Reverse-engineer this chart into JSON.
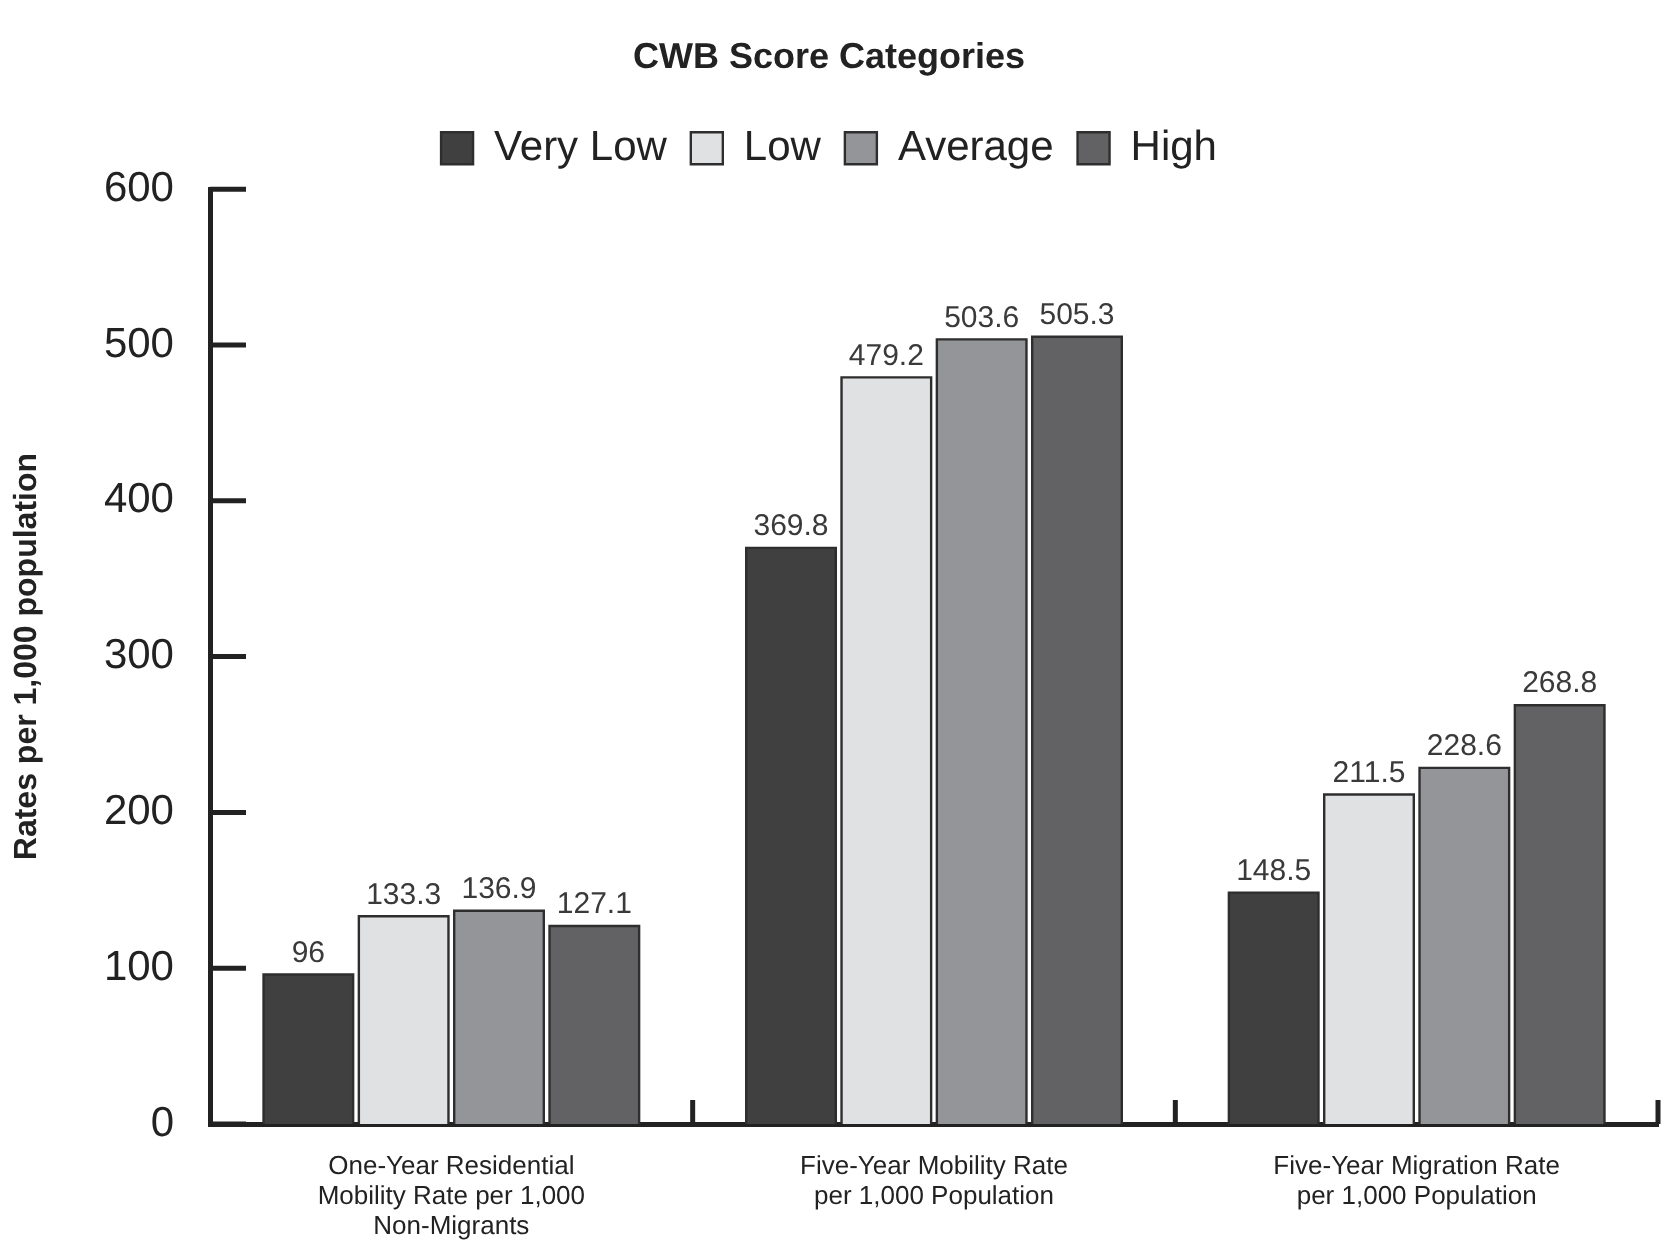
{
  "chart_data": {
    "type": "bar",
    "title": "CWB Score Categories",
    "ylabel": "Rates per 1,000 population",
    "categories": [
      "One-Year Residential Mobility Rate per 1,000 Non-Migrants",
      "Five-Year Mobility Rate per 1,000 Population",
      "Five-Year Migration Rate per 1,000 Population"
    ],
    "series": [
      {
        "name": "Very Low",
        "color": "#404040",
        "values": [
          96,
          369.8,
          148.5
        ]
      },
      {
        "name": "Low",
        "color": "#e0e1e3",
        "values": [
          133.3,
          479.2,
          211.5
        ]
      },
      {
        "name": "Average",
        "color": "#949598",
        "values": [
          136.9,
          503.6,
          228.6
        ]
      },
      {
        "name": "High",
        "color": "#626264",
        "values": [
          127.1,
          505.3,
          268.8
        ]
      }
    ],
    "ylim": [
      0,
      600
    ],
    "yticks": [
      0,
      100,
      200,
      300,
      400,
      500,
      600
    ],
    "grid": false,
    "legend": "top",
    "data_labels": true
  }
}
